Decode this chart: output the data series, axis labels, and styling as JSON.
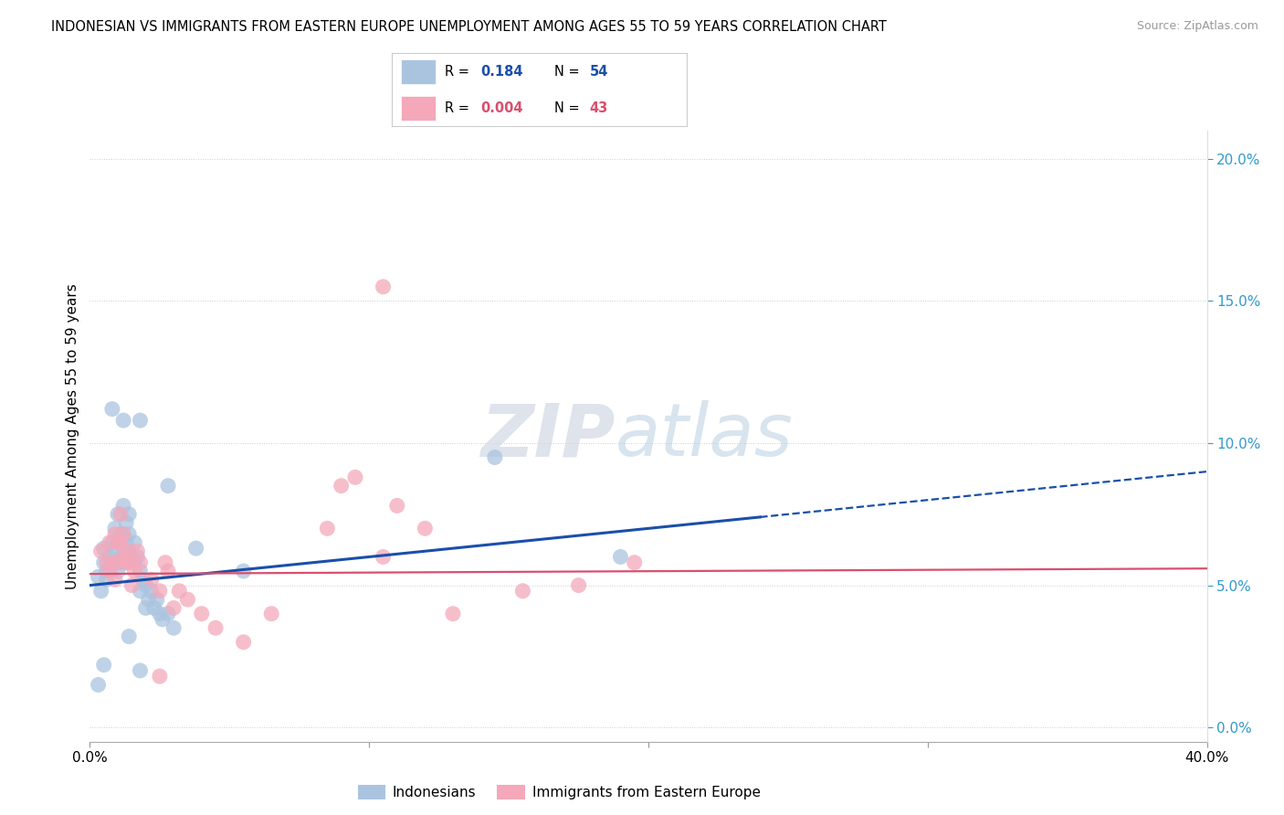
{
  "title": "INDONESIAN VS IMMIGRANTS FROM EASTERN EUROPE UNEMPLOYMENT AMONG AGES 55 TO 59 YEARS CORRELATION CHART",
  "source": "Source: ZipAtlas.com",
  "ylabel": "Unemployment Among Ages 55 to 59 years",
  "xlim": [
    0.0,
    0.4
  ],
  "ylim": [
    -0.005,
    0.21
  ],
  "xticks": [
    0.0,
    0.1,
    0.2,
    0.3,
    0.4
  ],
  "xticklabels": [
    "0.0%",
    "",
    "",
    "",
    "40.0%"
  ],
  "yticks_right": [
    0.0,
    0.05,
    0.1,
    0.15,
    0.2
  ],
  "yticklabels_right": [
    "0.0%",
    "5.0%",
    "10.0%",
    "15.0%",
    "20.0%"
  ],
  "legend_R_blue": "0.184",
  "legend_N_blue": "54",
  "legend_R_pink": "0.004",
  "legend_N_pink": "43",
  "blue_color": "#aac4e0",
  "pink_color": "#f4a8ba",
  "blue_line_color": "#1a4faa",
  "pink_line_color": "#d94f6e",
  "watermark_zip": "ZIP",
  "watermark_atlas": "atlas",
  "blue_scatter": [
    [
      0.003,
      0.053
    ],
    [
      0.004,
      0.048
    ],
    [
      0.005,
      0.058
    ],
    [
      0.005,
      0.063
    ],
    [
      0.006,
      0.055
    ],
    [
      0.006,
      0.052
    ],
    [
      0.007,
      0.06
    ],
    [
      0.007,
      0.056
    ],
    [
      0.008,
      0.065
    ],
    [
      0.008,
      0.058
    ],
    [
      0.009,
      0.07
    ],
    [
      0.009,
      0.062
    ],
    [
      0.01,
      0.075
    ],
    [
      0.01,
      0.065
    ],
    [
      0.01,
      0.055
    ],
    [
      0.011,
      0.068
    ],
    [
      0.011,
      0.058
    ],
    [
      0.012,
      0.078
    ],
    [
      0.012,
      0.068
    ],
    [
      0.012,
      0.062
    ],
    [
      0.013,
      0.072
    ],
    [
      0.013,
      0.065
    ],
    [
      0.013,
      0.058
    ],
    [
      0.014,
      0.075
    ],
    [
      0.014,
      0.068
    ],
    [
      0.015,
      0.06
    ],
    [
      0.016,
      0.065
    ],
    [
      0.016,
      0.058
    ],
    [
      0.017,
      0.06
    ],
    [
      0.018,
      0.055
    ],
    [
      0.018,
      0.048
    ],
    [
      0.019,
      0.052
    ],
    [
      0.02,
      0.05
    ],
    [
      0.02,
      0.042
    ],
    [
      0.021,
      0.045
    ],
    [
      0.022,
      0.048
    ],
    [
      0.023,
      0.042
    ],
    [
      0.024,
      0.045
    ],
    [
      0.025,
      0.04
    ],
    [
      0.026,
      0.038
    ],
    [
      0.028,
      0.04
    ],
    [
      0.03,
      0.035
    ],
    [
      0.008,
      0.112
    ],
    [
      0.012,
      0.108
    ],
    [
      0.018,
      0.108
    ],
    [
      0.028,
      0.085
    ],
    [
      0.038,
      0.063
    ],
    [
      0.055,
      0.055
    ],
    [
      0.145,
      0.095
    ],
    [
      0.19,
      0.06
    ],
    [
      0.003,
      0.015
    ],
    [
      0.005,
      0.022
    ],
    [
      0.014,
      0.032
    ],
    [
      0.018,
      0.02
    ]
  ],
  "pink_scatter": [
    [
      0.004,
      0.062
    ],
    [
      0.006,
      0.058
    ],
    [
      0.007,
      0.065
    ],
    [
      0.007,
      0.055
    ],
    [
      0.008,
      0.058
    ],
    [
      0.009,
      0.068
    ],
    [
      0.009,
      0.052
    ],
    [
      0.01,
      0.065
    ],
    [
      0.01,
      0.058
    ],
    [
      0.011,
      0.075
    ],
    [
      0.011,
      0.065
    ],
    [
      0.012,
      0.06
    ],
    [
      0.012,
      0.068
    ],
    [
      0.013,
      0.058
    ],
    [
      0.014,
      0.062
    ],
    [
      0.015,
      0.058
    ],
    [
      0.015,
      0.05
    ],
    [
      0.016,
      0.055
    ],
    [
      0.017,
      0.062
    ],
    [
      0.018,
      0.058
    ],
    [
      0.022,
      0.052
    ],
    [
      0.025,
      0.048
    ],
    [
      0.027,
      0.058
    ],
    [
      0.028,
      0.055
    ],
    [
      0.03,
      0.042
    ],
    [
      0.032,
      0.048
    ],
    [
      0.035,
      0.045
    ],
    [
      0.04,
      0.04
    ],
    [
      0.045,
      0.035
    ],
    [
      0.055,
      0.03
    ],
    [
      0.065,
      0.04
    ],
    [
      0.085,
      0.07
    ],
    [
      0.09,
      0.085
    ],
    [
      0.095,
      0.088
    ],
    [
      0.105,
      0.06
    ],
    [
      0.11,
      0.078
    ],
    [
      0.12,
      0.07
    ],
    [
      0.13,
      0.04
    ],
    [
      0.155,
      0.048
    ],
    [
      0.175,
      0.05
    ],
    [
      0.195,
      0.058
    ],
    [
      0.105,
      0.155
    ],
    [
      0.025,
      0.018
    ]
  ],
  "blue_trendline_solid": [
    [
      0.0,
      0.05
    ],
    [
      0.24,
      0.074
    ]
  ],
  "blue_trendline_dash": [
    [
      0.24,
      0.074
    ],
    [
      0.42,
      0.092
    ]
  ],
  "pink_trendline": [
    [
      0.0,
      0.054
    ],
    [
      0.42,
      0.056
    ]
  ]
}
